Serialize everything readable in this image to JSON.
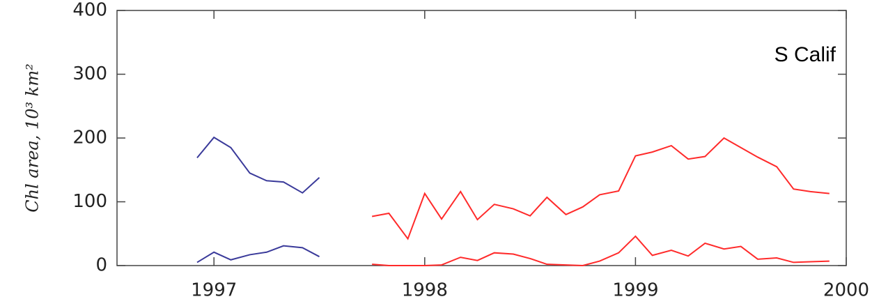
{
  "chart_data": {
    "type": "line",
    "y_label": "Chl area, 10³ km²",
    "annotation": "S Calif",
    "xlim": [
      1996.54,
      2000
    ],
    "xticks": [
      1997,
      1998,
      1999,
      2000
    ],
    "ylim": [
      0,
      400
    ],
    "yticks": [
      0,
      100,
      200,
      300,
      400
    ],
    "series": [
      {
        "color": "#3a3a9a",
        "x": [
          1996.92,
          1997.0,
          1997.08,
          1997.17,
          1997.25,
          1997.33,
          1997.42,
          1997.5
        ],
        "values": [
          169,
          201,
          185,
          145,
          133,
          131,
          114,
          138
        ]
      },
      {
        "color": "#3a3a9a",
        "x": [
          1996.92,
          1997.0,
          1997.08,
          1997.17,
          1997.25,
          1997.33,
          1997.42,
          1997.5
        ],
        "values": [
          5,
          21,
          9,
          17,
          21,
          31,
          28,
          14
        ]
      },
      {
        "color": "#ff2a2a",
        "x": [
          1997.75,
          1997.83,
          1997.92,
          1998.0,
          1998.08,
          1998.17,
          1998.25,
          1998.33,
          1998.42,
          1998.5,
          1998.58,
          1998.67,
          1998.75,
          1998.83,
          1998.92,
          1999.0,
          1999.08,
          1999.17,
          1999.25,
          1999.33,
          1999.42,
          1999.5,
          1999.58,
          1999.67,
          1999.75,
          1999.83,
          1999.92
        ],
        "values": [
          77,
          82,
          42,
          113,
          73,
          116,
          72,
          96,
          89,
          78,
          107,
          80,
          92,
          111,
          117,
          172,
          178,
          188,
          167,
          171,
          200,
          185,
          170,
          155,
          120,
          116,
          113
        ]
      },
      {
        "color": "#ff2a2a",
        "x": [
          1997.75,
          1997.83,
          1997.92,
          1998.0,
          1998.08,
          1998.17,
          1998.25,
          1998.33,
          1998.42,
          1998.5,
          1998.58,
          1998.67,
          1998.75,
          1998.83,
          1998.92,
          1999.0,
          1999.08,
          1999.17,
          1999.25,
          1999.33,
          1999.42,
          1999.5,
          1999.58,
          1999.67,
          1999.75,
          1999.83,
          1999.92
        ],
        "values": [
          2,
          0,
          0,
          0,
          1,
          13,
          8,
          20,
          18,
          11,
          2,
          1,
          0,
          7,
          20,
          46,
          16,
          24,
          15,
          35,
          26,
          30,
          10,
          12,
          5,
          6,
          7
        ]
      }
    ]
  }
}
